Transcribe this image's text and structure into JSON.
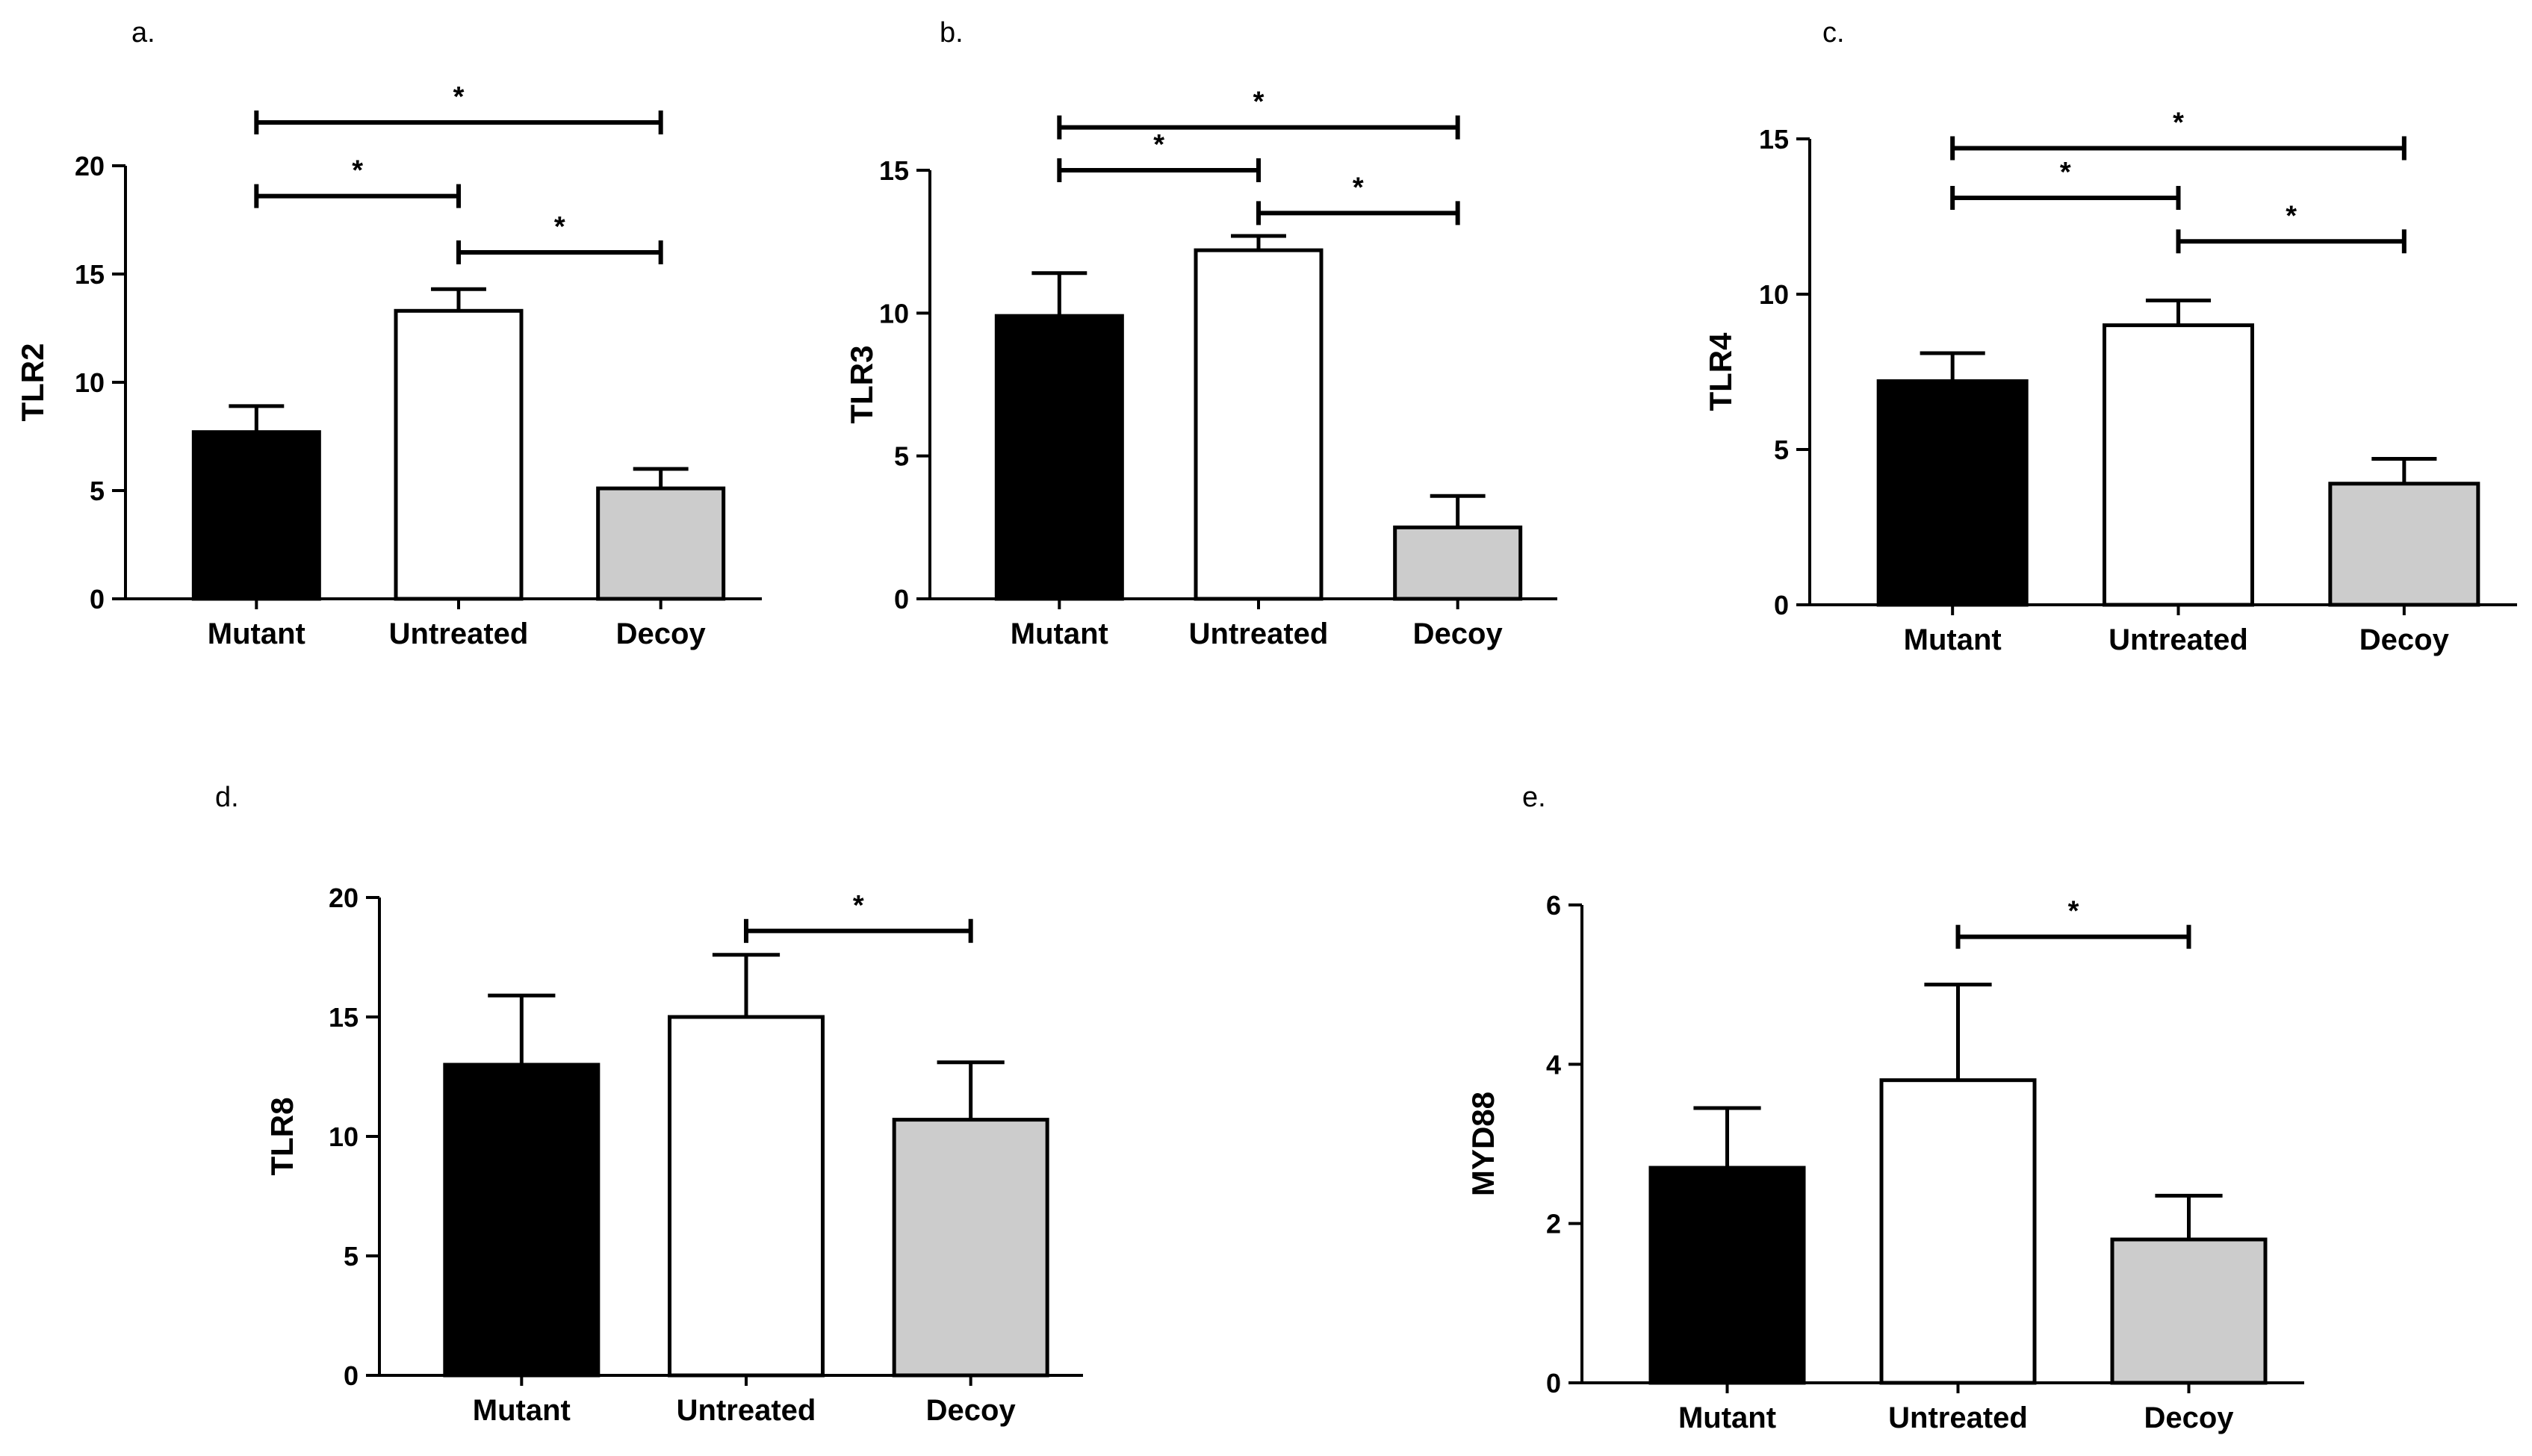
{
  "figure": {
    "background": "#ffffff"
  },
  "bar_colors": {
    "Mutant": "#000000",
    "Untreated": "#ffffff",
    "Decoy": "#cccccc"
  },
  "chart_data": [
    {
      "id": "a",
      "panel_label": "a.",
      "type": "bar",
      "ylabel": "TLR2",
      "categories": [
        "Mutant",
        "Untreated",
        "Decoy"
      ],
      "values": [
        7.7,
        13.3,
        5.1
      ],
      "errors": [
        1.2,
        1.0,
        0.9
      ],
      "ylim": [
        0,
        20
      ],
      "yticks": [
        0,
        5,
        10,
        15,
        20
      ],
      "significance": [
        {
          "from": 0,
          "to": 2,
          "label": "*",
          "y": 22
        },
        {
          "from": 0,
          "to": 1,
          "label": "*",
          "y": 18.6
        },
        {
          "from": 1,
          "to": 2,
          "label": "*",
          "y": 16
        }
      ]
    },
    {
      "id": "b",
      "panel_label": "b.",
      "type": "bar",
      "ylabel": "TLR3",
      "categories": [
        "Mutant",
        "Untreated",
        "Decoy"
      ],
      "values": [
        9.9,
        12.2,
        2.5
      ],
      "errors": [
        1.5,
        0.5,
        1.1
      ],
      "ylim": [
        0,
        15
      ],
      "yticks": [
        0,
        5,
        10,
        15
      ],
      "significance": [
        {
          "from": 0,
          "to": 2,
          "label": "*",
          "y": 16.5
        },
        {
          "from": 0,
          "to": 1,
          "label": "*",
          "y": 15
        },
        {
          "from": 1,
          "to": 2,
          "label": "*",
          "y": 13.5
        }
      ]
    },
    {
      "id": "c",
      "panel_label": "c.",
      "type": "bar",
      "ylabel": "TLR4",
      "categories": [
        "Mutant",
        "Untreated",
        "Decoy"
      ],
      "values": [
        7.2,
        9.0,
        3.9
      ],
      "errors": [
        0.9,
        0.8,
        0.8
      ],
      "ylim": [
        0,
        15
      ],
      "yticks": [
        0,
        5,
        10,
        15
      ],
      "significance": [
        {
          "from": 0,
          "to": 2,
          "label": "*",
          "y": 14.7
        },
        {
          "from": 0,
          "to": 1,
          "label": "*",
          "y": 13.1
        },
        {
          "from": 1,
          "to": 2,
          "label": "*",
          "y": 11.7
        }
      ]
    },
    {
      "id": "d",
      "panel_label": "d.",
      "type": "bar",
      "ylabel": "TLR8",
      "categories": [
        "Mutant",
        "Untreated",
        "Decoy"
      ],
      "values": [
        13.0,
        15.0,
        10.7
      ],
      "errors": [
        2.9,
        2.6,
        2.4
      ],
      "ylim": [
        0,
        20
      ],
      "yticks": [
        0,
        5,
        10,
        15,
        20
      ],
      "significance": [
        {
          "from": 1,
          "to": 2,
          "label": "*",
          "y": 18.6
        }
      ]
    },
    {
      "id": "e",
      "panel_label": "e.",
      "type": "bar",
      "ylabel": "MYD88",
      "categories": [
        "Mutant",
        "Untreated",
        "Decoy"
      ],
      "values": [
        2.7,
        3.8,
        1.8
      ],
      "errors": [
        0.75,
        1.2,
        0.55
      ],
      "ylim": [
        0,
        6
      ],
      "yticks": [
        0,
        2,
        4,
        6
      ],
      "significance": [
        {
          "from": 1,
          "to": 2,
          "label": "*",
          "y": 5.6
        }
      ]
    }
  ]
}
